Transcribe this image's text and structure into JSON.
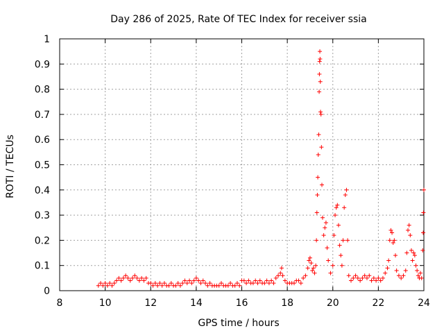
{
  "chart_data": {
    "type": "scatter",
    "title": "Day 286 of 2025, Rate Of TEC Index for receiver ssia",
    "xlabel": "GPS time / hours",
    "ylabel": "ROTI / TECUs",
    "xlim": [
      8,
      24
    ],
    "ylim": [
      0,
      1
    ],
    "x_ticks": [
      "8",
      "10",
      "12",
      "14",
      "16",
      "18",
      "20",
      "22",
      "24"
    ],
    "y_ticks": [
      "0",
      "0.1",
      "0.2",
      "0.3",
      "0.4",
      "0.5",
      "0.6",
      "0.7",
      "0.8",
      "0.9",
      "1"
    ],
    "grid": true,
    "marker": "+",
    "series": [
      {
        "name": "ROTI",
        "color": "#ff0000",
        "points": [
          [
            9.7,
            0.02
          ],
          [
            9.8,
            0.03
          ],
          [
            9.9,
            0.02
          ],
          [
            10.0,
            0.03
          ],
          [
            10.1,
            0.02
          ],
          [
            10.2,
            0.03
          ],
          [
            10.3,
            0.02
          ],
          [
            10.4,
            0.03
          ],
          [
            10.5,
            0.04
          ],
          [
            10.6,
            0.05
          ],
          [
            10.7,
            0.04
          ],
          [
            10.8,
            0.05
          ],
          [
            10.9,
            0.06
          ],
          [
            11.0,
            0.05
          ],
          [
            11.1,
            0.04
          ],
          [
            11.2,
            0.05
          ],
          [
            11.3,
            0.06
          ],
          [
            11.4,
            0.05
          ],
          [
            11.5,
            0.04
          ],
          [
            11.6,
            0.05
          ],
          [
            11.7,
            0.04
          ],
          [
            11.8,
            0.05
          ],
          [
            11.9,
            0.03
          ],
          [
            12.0,
            0.03
          ],
          [
            12.1,
            0.02
          ],
          [
            12.2,
            0.03
          ],
          [
            12.3,
            0.02
          ],
          [
            12.4,
            0.03
          ],
          [
            12.5,
            0.02
          ],
          [
            12.6,
            0.03
          ],
          [
            12.7,
            0.02
          ],
          [
            12.8,
            0.02
          ],
          [
            12.9,
            0.03
          ],
          [
            13.0,
            0.02
          ],
          [
            13.1,
            0.02
          ],
          [
            13.2,
            0.03
          ],
          [
            13.3,
            0.02
          ],
          [
            13.4,
            0.03
          ],
          [
            13.5,
            0.04
          ],
          [
            13.6,
            0.03
          ],
          [
            13.7,
            0.04
          ],
          [
            13.8,
            0.03
          ],
          [
            13.9,
            0.04
          ],
          [
            14.0,
            0.05
          ],
          [
            14.1,
            0.04
          ],
          [
            14.2,
            0.03
          ],
          [
            14.3,
            0.04
          ],
          [
            14.4,
            0.03
          ],
          [
            14.5,
            0.02
          ],
          [
            14.6,
            0.03
          ],
          [
            14.7,
            0.02
          ],
          [
            14.8,
            0.02
          ],
          [
            14.9,
            0.02
          ],
          [
            15.0,
            0.02
          ],
          [
            15.1,
            0.03
          ],
          [
            15.2,
            0.02
          ],
          [
            15.3,
            0.02
          ],
          [
            15.4,
            0.02
          ],
          [
            15.5,
            0.03
          ],
          [
            15.6,
            0.02
          ],
          [
            15.7,
            0.02
          ],
          [
            15.8,
            0.03
          ],
          [
            15.9,
            0.02
          ],
          [
            16.0,
            0.04
          ],
          [
            16.1,
            0.04
          ],
          [
            16.2,
            0.03
          ],
          [
            16.3,
            0.04
          ],
          [
            16.4,
            0.03
          ],
          [
            16.5,
            0.03
          ],
          [
            16.6,
            0.04
          ],
          [
            16.7,
            0.03
          ],
          [
            16.8,
            0.04
          ],
          [
            16.9,
            0.03
          ],
          [
            17.0,
            0.03
          ],
          [
            17.1,
            0.04
          ],
          [
            17.2,
            0.03
          ],
          [
            17.3,
            0.04
          ],
          [
            17.4,
            0.03
          ],
          [
            17.5,
            0.05
          ],
          [
            17.6,
            0.06
          ],
          [
            17.7,
            0.07
          ],
          [
            17.75,
            0.09
          ],
          [
            17.8,
            0.06
          ],
          [
            17.9,
            0.04
          ],
          [
            18.0,
            0.03
          ],
          [
            18.1,
            0.03
          ],
          [
            18.2,
            0.03
          ],
          [
            18.3,
            0.03
          ],
          [
            18.4,
            0.04
          ],
          [
            18.5,
            0.04
          ],
          [
            18.6,
            0.03
          ],
          [
            18.7,
            0.05
          ],
          [
            18.8,
            0.06
          ],
          [
            18.9,
            0.09
          ],
          [
            18.95,
            0.12
          ],
          [
            19.0,
            0.13
          ],
          [
            19.05,
            0.11
          ],
          [
            19.1,
            0.08
          ],
          [
            19.15,
            0.09
          ],
          [
            19.2,
            0.07
          ],
          [
            19.25,
            0.1
          ],
          [
            19.28,
            0.2
          ],
          [
            19.3,
            0.31
          ],
          [
            19.32,
            0.38
          ],
          [
            19.34,
            0.45
          ],
          [
            19.36,
            0.54
          ],
          [
            19.38,
            0.62
          ],
          [
            19.4,
            0.79
          ],
          [
            19.41,
            0.86
          ],
          [
            19.42,
            0.91
          ],
          [
            19.43,
            0.95
          ],
          [
            19.44,
            0.92
          ],
          [
            19.45,
            0.83
          ],
          [
            19.46,
            0.71
          ],
          [
            19.48,
            0.7
          ],
          [
            19.5,
            0.57
          ],
          [
            19.52,
            0.42
          ],
          [
            19.55,
            0.29
          ],
          [
            19.6,
            0.22
          ],
          [
            19.65,
            0.25
          ],
          [
            19.7,
            0.27
          ],
          [
            19.75,
            0.17
          ],
          [
            19.8,
            0.12
          ],
          [
            19.9,
            0.07
          ],
          [
            20.0,
            0.1
          ],
          [
            20.05,
            0.22
          ],
          [
            20.1,
            0.3
          ],
          [
            20.15,
            0.33
          ],
          [
            20.2,
            0.34
          ],
          [
            20.25,
            0.26
          ],
          [
            20.3,
            0.18
          ],
          [
            20.35,
            0.14
          ],
          [
            20.4,
            0.1
          ],
          [
            20.45,
            0.2
          ],
          [
            20.5,
            0.33
          ],
          [
            20.55,
            0.38
          ],
          [
            20.6,
            0.4
          ],
          [
            20.65,
            0.2
          ],
          [
            20.7,
            0.06
          ],
          [
            20.8,
            0.04
          ],
          [
            20.9,
            0.05
          ],
          [
            21.0,
            0.06
          ],
          [
            21.1,
            0.05
          ],
          [
            21.2,
            0.04
          ],
          [
            21.3,
            0.05
          ],
          [
            21.4,
            0.06
          ],
          [
            21.5,
            0.05
          ],
          [
            21.6,
            0.06
          ],
          [
            21.7,
            0.04
          ],
          [
            21.8,
            0.05
          ],
          [
            21.9,
            0.04
          ],
          [
            22.0,
            0.05
          ],
          [
            22.1,
            0.04
          ],
          [
            22.2,
            0.05
          ],
          [
            22.3,
            0.07
          ],
          [
            22.4,
            0.09
          ],
          [
            22.45,
            0.12
          ],
          [
            22.5,
            0.2
          ],
          [
            22.55,
            0.24
          ],
          [
            22.6,
            0.23
          ],
          [
            22.65,
            0.19
          ],
          [
            22.7,
            0.2
          ],
          [
            22.75,
            0.14
          ],
          [
            22.8,
            0.08
          ],
          [
            22.9,
            0.06
          ],
          [
            23.0,
            0.05
          ],
          [
            23.1,
            0.06
          ],
          [
            23.2,
            0.08
          ],
          [
            23.25,
            0.15
          ],
          [
            23.3,
            0.24
          ],
          [
            23.35,
            0.26
          ],
          [
            23.4,
            0.22
          ],
          [
            23.45,
            0.16
          ],
          [
            23.5,
            0.12
          ],
          [
            23.55,
            0.15
          ],
          [
            23.6,
            0.14
          ],
          [
            23.65,
            0.1
          ],
          [
            23.7,
            0.08
          ],
          [
            23.75,
            0.06
          ],
          [
            23.8,
            0.05
          ],
          [
            23.85,
            0.07
          ],
          [
            23.9,
            0.05
          ],
          [
            23.95,
            0.16
          ],
          [
            23.97,
            0.23
          ],
          [
            23.98,
            0.31
          ],
          [
            24.0,
            0.4
          ]
        ]
      }
    ]
  }
}
